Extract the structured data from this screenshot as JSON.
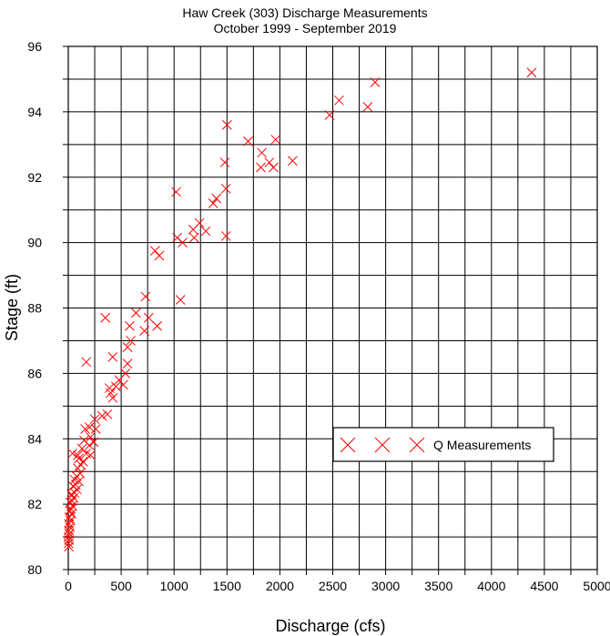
{
  "chart_data": {
    "type": "scatter",
    "title": "Haw Creek (303) Discharge Measurements",
    "subtitle": "October 1999 - September 2019",
    "xlabel": "Discharge (cfs)",
    "ylabel": "Stage (ft)",
    "xlim": [
      0,
      5000
    ],
    "ylim": [
      80,
      96
    ],
    "xticks": [
      0,
      250,
      500,
      750,
      1000,
      1250,
      1500,
      1750,
      2000,
      2250,
      2500,
      2750,
      3000,
      3250,
      3500,
      3750,
      4000,
      4250,
      4500,
      4750,
      5000
    ],
    "xtick_labels": [
      "0",
      "500",
      "1000",
      "1500",
      "2000",
      "2500",
      "3000",
      "3500",
      "4000",
      "4500",
      "5000"
    ],
    "yticks": [
      80,
      81,
      82,
      83,
      84,
      85,
      86,
      87,
      88,
      89,
      90,
      91,
      92,
      93,
      94,
      95,
      96
    ],
    "ytick_labels": [
      "80",
      "82",
      "84",
      "86",
      "88",
      "90",
      "92",
      "94",
      "96"
    ],
    "grid": true,
    "legend_position": "lower-right",
    "marker_color": "#ff0000",
    "series": [
      {
        "name": "Q Measurements",
        "points": [
          [
            4380,
            95.2
          ],
          [
            2900,
            94.9
          ],
          [
            2830,
            94.15
          ],
          [
            2560,
            94.35
          ],
          [
            2470,
            93.9
          ],
          [
            1960,
            93.15
          ],
          [
            1700,
            93.1
          ],
          [
            1500,
            93.6
          ],
          [
            1830,
            92.75
          ],
          [
            1900,
            92.45
          ],
          [
            1940,
            92.3
          ],
          [
            1820,
            92.3
          ],
          [
            2120,
            92.5
          ],
          [
            1480,
            92.45
          ],
          [
            1490,
            91.65
          ],
          [
            1400,
            91.35
          ],
          [
            1020,
            91.55
          ],
          [
            1370,
            91.2
          ],
          [
            1240,
            90.6
          ],
          [
            1180,
            90.4
          ],
          [
            1300,
            90.35
          ],
          [
            1190,
            90.15
          ],
          [
            1080,
            90.0
          ],
          [
            1030,
            90.15
          ],
          [
            1490,
            90.2
          ],
          [
            820,
            89.75
          ],
          [
            860,
            89.6
          ],
          [
            730,
            88.35
          ],
          [
            1060,
            88.25
          ],
          [
            350,
            87.7
          ],
          [
            580,
            87.45
          ],
          [
            760,
            87.7
          ],
          [
            640,
            87.85
          ],
          [
            840,
            87.45
          ],
          [
            720,
            87.3
          ],
          [
            590,
            87.0
          ],
          [
            560,
            86.8
          ],
          [
            420,
            86.5
          ],
          [
            560,
            86.3
          ],
          [
            170,
            86.35
          ],
          [
            540,
            86.0
          ],
          [
            480,
            85.8
          ],
          [
            520,
            85.65
          ],
          [
            390,
            85.55
          ],
          [
            450,
            85.6
          ],
          [
            400,
            85.4
          ],
          [
            420,
            85.25
          ],
          [
            370,
            84.75
          ],
          [
            320,
            84.7
          ],
          [
            250,
            84.6
          ],
          [
            260,
            84.3
          ],
          [
            200,
            84.35
          ],
          [
            160,
            84.3
          ],
          [
            210,
            84.05
          ],
          [
            240,
            83.9
          ],
          [
            150,
            83.95
          ],
          [
            200,
            83.8
          ],
          [
            130,
            83.7
          ],
          [
            170,
            83.55
          ],
          [
            90,
            83.5
          ],
          [
            210,
            83.5
          ],
          [
            40,
            83.55
          ],
          [
            100,
            83.4
          ],
          [
            140,
            83.3
          ],
          [
            120,
            83.2
          ],
          [
            90,
            83.1
          ],
          [
            110,
            82.95
          ],
          [
            80,
            82.85
          ],
          [
            60,
            82.75
          ],
          [
            100,
            82.7
          ],
          [
            70,
            82.6
          ],
          [
            45,
            82.55
          ],
          [
            80,
            82.45
          ],
          [
            60,
            82.35
          ],
          [
            30,
            82.3
          ],
          [
            50,
            82.2
          ],
          [
            35,
            82.1
          ],
          [
            20,
            82.05
          ],
          [
            40,
            81.95
          ],
          [
            25,
            81.85
          ],
          [
            15,
            81.8
          ],
          [
            30,
            81.7
          ],
          [
            10,
            81.6
          ],
          [
            20,
            81.5
          ],
          [
            8,
            81.4
          ],
          [
            15,
            81.3
          ],
          [
            5,
            81.2
          ],
          [
            10,
            81.1
          ],
          [
            4,
            81.0
          ],
          [
            8,
            80.9
          ],
          [
            3,
            80.8
          ],
          [
            6,
            80.7
          ]
        ]
      }
    ]
  }
}
